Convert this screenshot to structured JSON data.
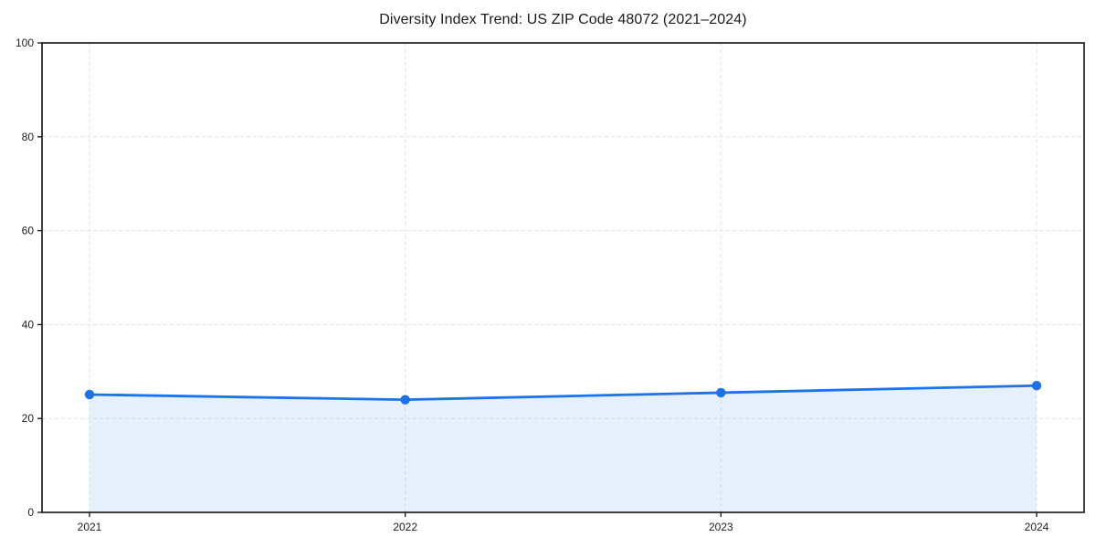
{
  "chart_data": {
    "type": "line",
    "title": "Diversity Index Trend: US ZIP Code 48072 (2021–2024)",
    "categories": [
      "2021",
      "2022",
      "2023",
      "2024"
    ],
    "values": [
      25.1,
      24.0,
      25.5,
      27.0
    ],
    "xlabel": "",
    "ylabel": "",
    "ylim": [
      0,
      100
    ],
    "yticks": [
      0,
      20,
      40,
      60,
      80,
      100
    ],
    "grid": "dashed",
    "legend": "none",
    "marker": "circle",
    "area_fill": true,
    "line_color": "#1a73e8",
    "marker_color": "#1a73e8",
    "fill_color": "rgba(26,115,232,0.11)",
    "grid_color": "#e3e3e3",
    "axis_color": "#111111",
    "tick_label_color": "#222222",
    "background_color": "#ffffff"
  }
}
